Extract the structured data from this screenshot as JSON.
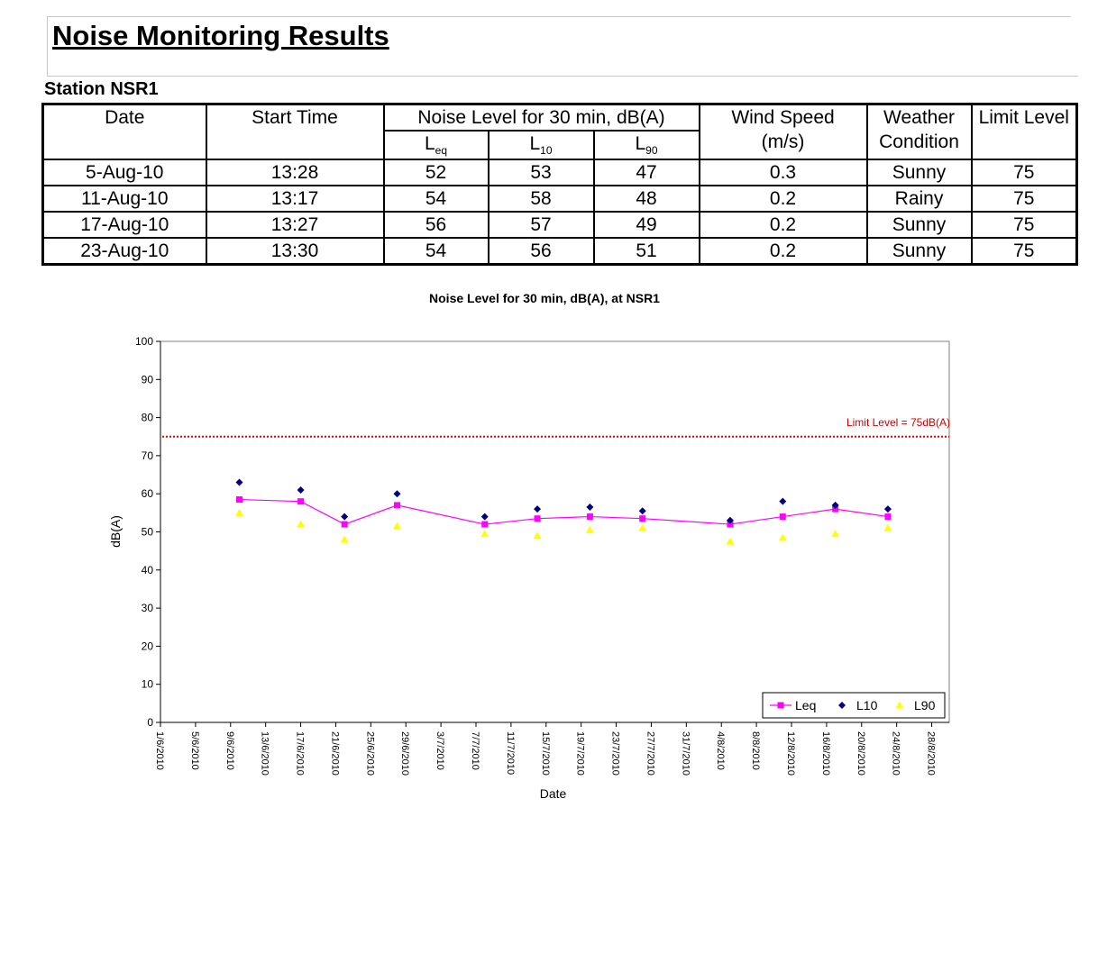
{
  "page": {
    "title": "Noise Monitoring Results",
    "station": "Station NSR1"
  },
  "table": {
    "headers": {
      "date": "Date",
      "start_time": "Start Time",
      "noise_level": "Noise Level for 30 min, dB(A)",
      "leq_main": "L",
      "leq_sub": "eq",
      "l10_main": "L",
      "l10_sub": "10",
      "l90_main": "L",
      "l90_sub": "90",
      "wind_1": "Wind Speed",
      "wind_2": "(m/s)",
      "weather_1": "Weather",
      "weather_2": "Condition",
      "limit": "Limit Level"
    },
    "rows": [
      {
        "date": "5-Aug-10",
        "time": "13:28",
        "leq": "52",
        "l10": "53",
        "l90": "47",
        "wind": "0.3",
        "weather": "Sunny",
        "limit": "75"
      },
      {
        "date": "11-Aug-10",
        "time": "13:17",
        "leq": "54",
        "l10": "58",
        "l90": "48",
        "wind": "0.2",
        "weather": "Rainy",
        "limit": "75"
      },
      {
        "date": "17-Aug-10",
        "time": "13:27",
        "leq": "56",
        "l10": "57",
        "l90": "49",
        "wind": "0.2",
        "weather": "Sunny",
        "limit": "75"
      },
      {
        "date": "23-Aug-10",
        "time": "13:30",
        "leq": "54",
        "l10": "56",
        "l90": "51",
        "wind": "0.2",
        "weather": "Sunny",
        "limit": "75"
      }
    ]
  },
  "chart_data": {
    "type": "line",
    "title": "Noise Level for 30 min, dB(A), at NSR1",
    "xlabel": "Date",
    "ylabel": "dB(A)",
    "ylim": [
      0,
      100
    ],
    "yticks": [
      0,
      10,
      20,
      30,
      40,
      50,
      60,
      70,
      80,
      90,
      100
    ],
    "xlim": [
      "2010-06-01",
      "2010-08-30"
    ],
    "xticks": [
      "1/6/2010",
      "5/6/2010",
      "9/6/2010",
      "13/6/2010",
      "17/6/2010",
      "21/6/2010",
      "25/6/2010",
      "29/6/2010",
      "3/7/2010",
      "7/7/2010",
      "11/7/2010",
      "15/7/2010",
      "19/7/2010",
      "23/7/2010",
      "27/7/2010",
      "31/7/2010",
      "4/8/2010",
      "8/8/2010",
      "12/8/2010",
      "16/8/2010",
      "20/8/2010",
      "24/8/2010",
      "28/8/2010"
    ],
    "x": [
      "2010-06-10",
      "2010-06-17",
      "2010-06-22",
      "2010-06-28",
      "2010-07-08",
      "2010-07-14",
      "2010-07-20",
      "2010-07-26",
      "2010-08-05",
      "2010-08-11",
      "2010-08-17",
      "2010-08-23"
    ],
    "series": [
      {
        "name": "Leq",
        "color": "#ff00ff",
        "marker": "square",
        "line": true,
        "values": [
          58.5,
          58,
          52,
          57,
          52,
          53.5,
          54,
          53.5,
          52,
          54,
          56,
          54
        ]
      },
      {
        "name": "L10",
        "color": "#000080",
        "marker": "diamond",
        "line": false,
        "values": [
          63,
          61,
          54,
          60,
          54,
          56,
          56.5,
          55.5,
          53,
          58,
          57,
          56
        ]
      },
      {
        "name": "L90",
        "color": "#ffff00",
        "marker": "triangle",
        "line": false,
        "values": [
          55,
          52,
          48,
          51.5,
          49.5,
          49,
          50.5,
          51,
          47.5,
          48.5,
          49.5,
          51
        ]
      }
    ],
    "limit": {
      "value": 75,
      "label": "Limit Level = 75dB(A)",
      "color": "#dd0000",
      "style": "dotted"
    },
    "legend_position": "bottom-right",
    "grid": false
  }
}
